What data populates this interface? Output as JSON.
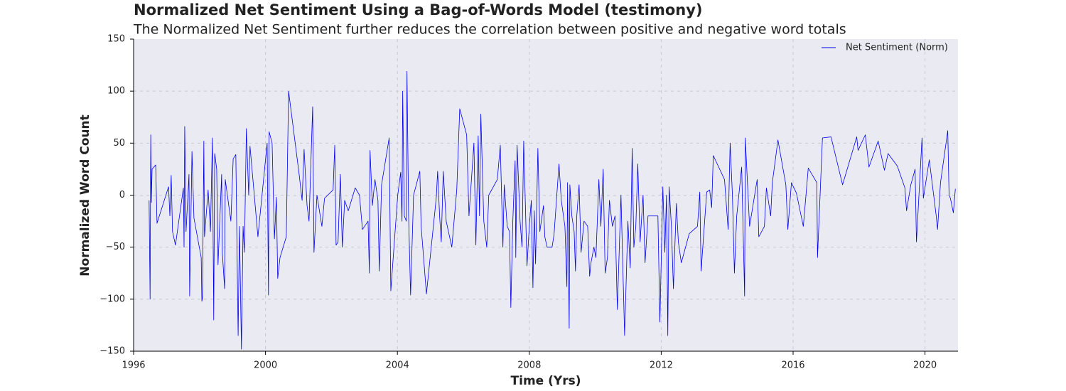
{
  "chart_data": {
    "type": "line",
    "title": "Normalized Net Sentiment Using a Bag-of-Words Model (testimony)",
    "subtitle": "The Normalized Net Sentiment further reduces the correlation between positive and negative word totals",
    "x_label": "Time (Yrs)",
    "y_label": "Normalized Word Count",
    "xlim": [
      1996,
      2021
    ],
    "ylim": [
      -150,
      150
    ],
    "xticks": [
      1996,
      2000,
      2004,
      2008,
      2012,
      2016,
      2020
    ],
    "yticks": [
      {
        "value": -150,
        "label": "−150"
      },
      {
        "value": -100,
        "label": "−100"
      },
      {
        "value": -50,
        "label": "−50"
      },
      0,
      50,
      100,
      150
    ],
    "grid": true,
    "legend": "upper right",
    "x": [
      1996.47,
      1996.5,
      1996.52,
      1996.54,
      1996.56,
      1996.67,
      1996.71,
      1997.06,
      1997.1,
      1997.14,
      1997.18,
      1997.27,
      1997.51,
      1997.53,
      1997.55,
      1997.59,
      1997.68,
      1997.7,
      1997.77,
      1997.83,
      1998.05,
      1998.07,
      1998.09,
      1998.13,
      1998.15,
      1998.26,
      1998.33,
      1998.39,
      1998.43,
      1998.46,
      1998.52,
      1998.56,
      1998.67,
      1998.69,
      1998.76,
      1998.78,
      1998.95,
      1999.02,
      1999.1,
      1999.17,
      1999.21,
      1999.27,
      1999.32,
      1999.36,
      1999.42,
      1999.49,
      1999.53,
      1999.77,
      2000.05,
      2000.09,
      2000.11,
      2000.2,
      2000.27,
      2000.33,
      2000.37,
      2000.44,
      2000.63,
      2000.7,
      2001.02,
      2001.11,
      2001.17,
      2001.26,
      2001.32,
      2001.43,
      2001.47,
      2001.56,
      2001.71,
      2001.79,
      2002.05,
      2002.1,
      2002.14,
      2002.2,
      2002.27,
      2002.33,
      2002.4,
      2002.51,
      2002.72,
      2002.85,
      2002.94,
      2003.11,
      2003.15,
      2003.17,
      2003.24,
      2003.32,
      2003.41,
      2003.45,
      2003.52,
      2003.75,
      2003.8,
      2004.01,
      2004.1,
      2004.14,
      2004.16,
      2004.21,
      2004.27,
      2004.29,
      2004.34,
      2004.4,
      2004.49,
      2004.68,
      2004.72,
      2004.88,
      2005.09,
      2005.18,
      2005.22,
      2005.28,
      2005.33,
      2005.39,
      2005.48,
      2005.65,
      2005.8,
      2005.89,
      2006.1,
      2006.17,
      2006.32,
      2006.38,
      2006.45,
      2006.49,
      2006.53,
      2006.62,
      2006.71,
      2006.77,
      2007.03,
      2007.12,
      2007.2,
      2007.24,
      2007.33,
      2007.4,
      2007.44,
      2007.5,
      2007.57,
      2007.59,
      2007.63,
      2007.72,
      2007.78,
      2007.83,
      2007.93,
      2008.0,
      2008.06,
      2008.11,
      2008.15,
      2008.19,
      2008.26,
      2008.32,
      2008.43,
      2008.47,
      2008.54,
      2008.69,
      2008.75,
      2008.9,
      2008.97,
      2009.08,
      2009.14,
      2009.16,
      2009.21,
      2009.23,
      2009.29,
      2009.36,
      2009.4,
      2009.44,
      2009.51,
      2009.57,
      2009.66,
      2009.77,
      2009.83,
      2009.87,
      2009.96,
      2010.02,
      2010.11,
      2010.17,
      2010.24,
      2010.3,
      2010.37,
      2010.43,
      2010.52,
      2010.6,
      2010.67,
      2010.78,
      2010.89,
      2010.99,
      2011.06,
      2011.12,
      2011.17,
      2011.23,
      2011.29,
      2011.36,
      2011.45,
      2011.51,
      2011.6,
      2011.75,
      2011.9,
      2011.96,
      2012.05,
      2012.11,
      2012.16,
      2012.2,
      2012.24,
      2012.31,
      2012.37,
      2012.46,
      2012.52,
      2012.61,
      2012.85,
      2013.1,
      2013.17,
      2013.21,
      2013.38,
      2013.47,
      2013.53,
      2013.58,
      2013.92,
      2014.03,
      2014.09,
      2014.16,
      2014.22,
      2014.29,
      2014.44,
      2014.53,
      2014.55,
      2014.68,
      2014.91,
      2014.96,
      2015.13,
      2015.19,
      2015.32,
      2015.37,
      2015.54,
      2015.78,
      2015.84,
      2015.95,
      2016.1,
      2016.31,
      2016.46,
      2016.72,
      2016.74,
      2016.89,
      2017.15,
      2017.5,
      2017.93,
      2017.97,
      2018.19,
      2018.3,
      2018.58,
      2018.77,
      2018.88,
      2019.16,
      2019.39,
      2019.44,
      2019.57,
      2019.7,
      2019.74,
      2019.91,
      2019.95,
      2020.13,
      2020.34,
      2020.38,
      2020.47,
      2020.69,
      2020.73,
      2020.77,
      2020.86,
      2020.92
    ],
    "series": [
      {
        "name": "Net Sentiment (Norm)",
        "color": "#0000ee",
        "values": [
          -5,
          -100,
          58,
          -7,
          25,
          29,
          -27,
          8,
          -20,
          19,
          -35,
          -48,
          7,
          -50,
          66,
          -35,
          20,
          -97,
          42,
          -22,
          -60,
          -102,
          -98,
          52,
          -40,
          5,
          -35,
          55,
          -120,
          40,
          25,
          -67,
          20,
          -55,
          -90,
          15,
          -25,
          35,
          39,
          -135,
          -30,
          -148,
          -30,
          -55,
          64,
          0,
          47,
          -40,
          50,
          -96,
          61,
          50,
          -42,
          -2,
          -80,
          -60,
          -40,
          100,
          20,
          -5,
          44,
          -10,
          -25,
          85,
          -55,
          0,
          -30,
          -3,
          5,
          48,
          -48,
          -45,
          20,
          -50,
          -5,
          -15,
          7,
          0,
          -33,
          -25,
          -75,
          43,
          -10,
          15,
          -5,
          -73,
          10,
          55,
          -92,
          0,
          22,
          -25,
          100,
          -20,
          -25,
          119,
          -20,
          -96,
          0,
          23,
          -30,
          -95,
          -30,
          -2,
          23,
          -20,
          -45,
          23,
          -25,
          -50,
          5,
          83,
          58,
          -20,
          50,
          -48,
          57,
          -20,
          78,
          -25,
          -50,
          0,
          15,
          48,
          -50,
          10,
          -30,
          -35,
          -108,
          -25,
          33,
          -60,
          48,
          -25,
          -50,
          52,
          -68,
          -30,
          -5,
          -89,
          -15,
          -66,
          45,
          -35,
          -10,
          -40,
          -50,
          -50,
          -38,
          30,
          -5,
          -30,
          -88,
          12,
          -128,
          10,
          -20,
          -35,
          -73,
          -20,
          10,
          -55,
          -25,
          -30,
          -78,
          -65,
          -50,
          -60,
          15,
          -30,
          25,
          -75,
          -60,
          -5,
          -30,
          -20,
          -110,
          0,
          -135,
          -25,
          -70,
          45,
          -50,
          -30,
          30,
          -45,
          0,
          -65,
          -20,
          -20,
          -20,
          -122,
          8,
          -55,
          0,
          -135,
          8,
          -30,
          -90,
          -8,
          -45,
          -65,
          -37,
          -30,
          3,
          -73,
          3,
          5,
          -12,
          38,
          15,
          -33,
          50,
          0,
          -75,
          -20,
          27,
          -97,
          55,
          -30,
          15,
          -40,
          -30,
          7,
          -20,
          12,
          53,
          10,
          -33,
          12,
          2,
          -30,
          26,
          12,
          -60,
          55,
          56,
          10,
          56,
          43,
          58,
          27,
          52,
          24,
          40,
          28,
          7,
          -15,
          10,
          25,
          -45,
          55,
          -3,
          34,
          -20,
          -33,
          12,
          62,
          0,
          -3,
          -17,
          6
        ]
      }
    ]
  }
}
